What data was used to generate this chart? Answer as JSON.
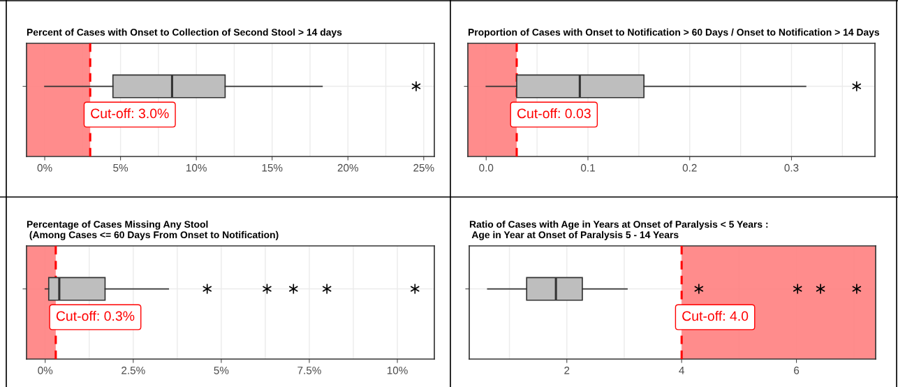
{
  "chart_data": [
    {
      "type": "box",
      "orientation": "horizontal",
      "title": "Percent of Cases with Onset to Collection of Second Stool > 14 days",
      "categories": [
        null
      ],
      "boxes": [
        {
          "low": 0,
          "q1": 4.5,
          "median": 8.4,
          "q3": 11.9,
          "high": 18.3,
          "outliers": [
            24.5
          ]
        }
      ],
      "color": "#bebebe",
      "marker": "star",
      "xlim": [
        -1.2,
        25.7
      ],
      "xticks": [
        {
          "value": 0,
          "label": "0%"
        },
        {
          "value": 5,
          "label": "5%"
        },
        {
          "value": 10,
          "label": "10%"
        },
        {
          "value": 15,
          "label": "15%"
        },
        {
          "value": 20,
          "label": "20%"
        },
        {
          "value": 25,
          "label": "25%"
        }
      ],
      "ref_lines": [
        {
          "axis": "x",
          "value": 3.0,
          "label": "Cut-off: 3.0%",
          "color": "#ff0000",
          "line_style": "dashed"
        }
      ],
      "bands": [
        {
          "axis": "x",
          "from": -1.2,
          "to": 3.0,
          "color": "#ff8080"
        }
      ],
      "grid": true,
      "tick_labels": "x"
    },
    {
      "type": "box",
      "orientation": "horizontal",
      "title": "Proportion of Cases with Onset to Notification > 60 Days / Onset to Notification > 14 Days",
      "categories": [
        null
      ],
      "boxes": [
        {
          "low": 0.0,
          "q1": 0.03,
          "median": 0.092,
          "q3": 0.155,
          "high": 0.314,
          "outliers": [
            0.364
          ]
        }
      ],
      "color": "#bebebe",
      "marker": "star",
      "xlim": [
        -0.018,
        0.382
      ],
      "xticks": [
        {
          "value": 0,
          "label": "0.0"
        },
        0.1,
        0.2,
        0.3
      ],
      "ref_lines": [
        {
          "axis": "x",
          "value": 0.03,
          "label": "Cut-off: 0.03",
          "color": "#ff0000",
          "line_style": "dashed"
        }
      ],
      "bands": [
        {
          "axis": "x",
          "from": -0.018,
          "to": 0.03,
          "color": "#ff8080"
        }
      ],
      "grid": true,
      "tick_labels": "x"
    },
    {
      "type": "box",
      "orientation": "horizontal",
      "title": "Percentage of Cases Missing Any Stool\n (Among Cases <= 60 Days From Onset to Notification)",
      "categories": [
        null
      ],
      "boxes": [
        {
          "low": 0.0,
          "q1": 0.1,
          "median": 0.4,
          "q3": 1.7,
          "high": 3.5,
          "outliers": [
            4.6,
            6.3,
            7.05,
            8.0,
            10.5
          ]
        }
      ],
      "color": "#bebebe",
      "marker": "star",
      "xlim": [
        -0.53,
        11.05
      ],
      "xticks": [
        {
          "value": 0,
          "label": "0%"
        },
        {
          "value": 2.5,
          "label": "2.5%"
        },
        {
          "value": 5,
          "label": "5%"
        },
        {
          "value": 7.5,
          "label": "7.5%"
        },
        {
          "value": 10,
          "label": "10%"
        }
      ],
      "ref_lines": [
        {
          "axis": "x",
          "value": 0.3,
          "label": "Cut-off: 0.3%",
          "color": "#ff0000",
          "line_style": "dashed"
        }
      ],
      "bands": [
        {
          "axis": "x",
          "from": -0.53,
          "to": 0.3,
          "color": "#ff8080"
        }
      ],
      "grid": true,
      "tick_labels": "x"
    },
    {
      "type": "box",
      "orientation": "horizontal",
      "title": "Ratio of Cases with Age in Years at Onset of Paralysis < 5 Years :\n Age in Year at Onset of Paralysis 5 - 14 Years",
      "categories": [
        null
      ],
      "boxes": [
        {
          "low": 0.62,
          "q1": 1.3,
          "median": 1.81,
          "q3": 2.27,
          "high": 3.05,
          "outliers": [
            4.3,
            6.02,
            6.42,
            7.05
          ]
        }
      ],
      "color": "#bebebe",
      "marker": "star",
      "xlim": [
        0.3,
        7.38
      ],
      "xticks": [
        2,
        4,
        6
      ],
      "ref_lines": [
        {
          "axis": "x",
          "value": 4.0,
          "label": "Cut-off: 4.0",
          "color": "#ff0000",
          "line_style": "dashed"
        }
      ],
      "bands": [
        {
          "axis": "x",
          "from": 4.0,
          "to": 7.38,
          "color": "#ff8080"
        }
      ],
      "grid": true,
      "tick_labels": "x"
    }
  ]
}
